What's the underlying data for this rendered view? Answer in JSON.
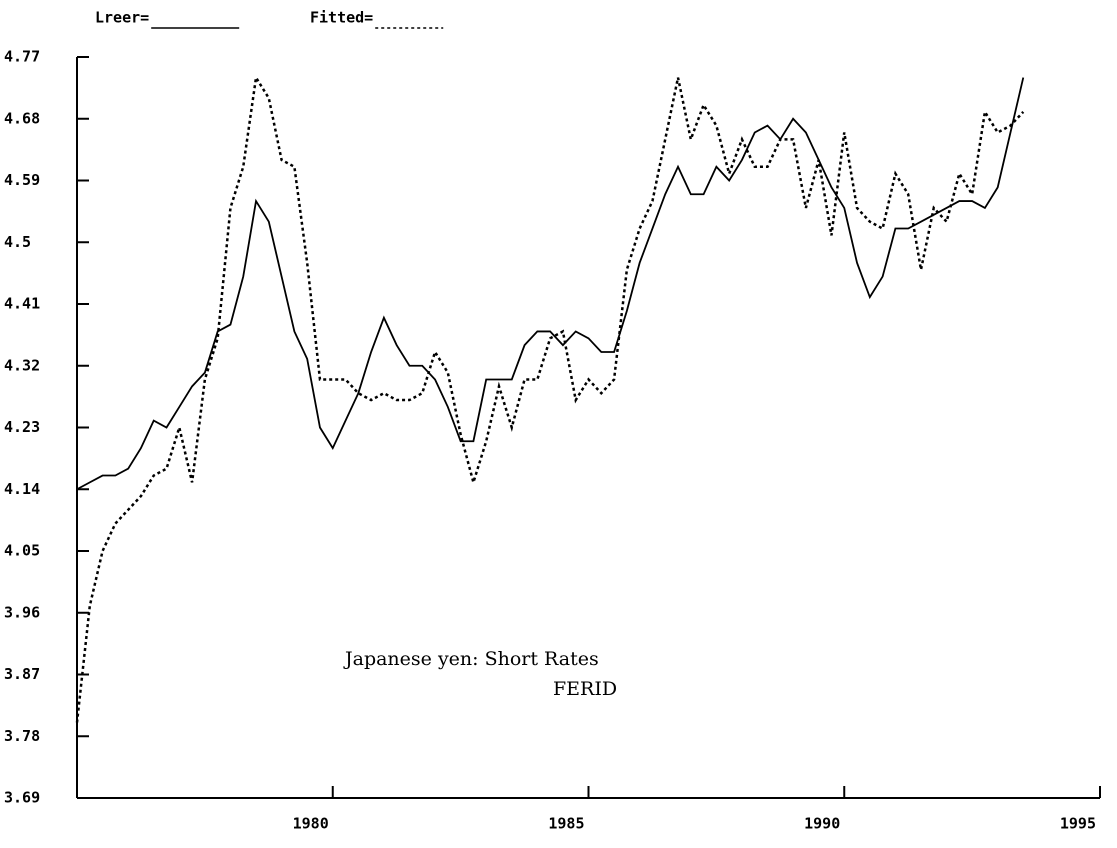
{
  "chart_data": {
    "type": "line",
    "x": [
      1975,
      1975.25,
      1975.5,
      1975.75,
      1976,
      1976.25,
      1976.5,
      1976.75,
      1977,
      1977.25,
      1977.5,
      1977.75,
      1978,
      1978.25,
      1978.5,
      1978.75,
      1979,
      1979.25,
      1979.5,
      1979.75,
      1980,
      1980.25,
      1980.5,
      1980.75,
      1981,
      1981.25,
      1981.5,
      1981.75,
      1982,
      1982.25,
      1982.5,
      1982.75,
      1983,
      1983.25,
      1983.5,
      1983.75,
      1984,
      1984.25,
      1984.5,
      1984.75,
      1985,
      1985.25,
      1985.5,
      1985.75,
      1986,
      1986.25,
      1986.5,
      1986.75,
      1987,
      1987.25,
      1987.5,
      1987.75,
      1988,
      1988.25,
      1988.5,
      1988.75,
      1989,
      1989.25,
      1989.5,
      1989.75,
      1990,
      1990.25,
      1990.5,
      1990.75,
      1991,
      1991.25,
      1991.5,
      1991.75,
      1992,
      1992.25,
      1992.5,
      1992.75,
      1993,
      1993.25,
      1993.5
    ],
    "series": [
      {
        "name": "Lreer=",
        "color": "#000000",
        "dash": false,
        "values": [
          4.14,
          4.15,
          4.16,
          4.16,
          4.17,
          4.2,
          4.24,
          4.23,
          4.26,
          4.29,
          4.31,
          4.37,
          4.38,
          4.45,
          4.56,
          4.53,
          4.45,
          4.37,
          4.33,
          4.23,
          4.2,
          4.24,
          4.28,
          4.34,
          4.39,
          4.35,
          4.32,
          4.32,
          4.3,
          4.26,
          4.21,
          4.21,
          4.3,
          4.3,
          4.3,
          4.35,
          4.37,
          4.37,
          4.35,
          4.37,
          4.36,
          4.34,
          4.34,
          4.4,
          4.47,
          4.52,
          4.57,
          4.61,
          4.57,
          4.57,
          4.61,
          4.59,
          4.62,
          4.66,
          4.67,
          4.65,
          4.68,
          4.66,
          4.62,
          4.58,
          4.55,
          4.47,
          4.42,
          4.45,
          4.52,
          4.52,
          4.53,
          4.54,
          4.55,
          4.56,
          4.56,
          4.55,
          4.58,
          4.66,
          4.74
        ]
      },
      {
        "name": "Fitted=",
        "color": "#000000",
        "dash": true,
        "values": [
          3.8,
          3.97,
          4.05,
          4.09,
          4.11,
          4.13,
          4.16,
          4.17,
          4.23,
          4.15,
          4.3,
          4.36,
          4.55,
          4.61,
          4.74,
          4.71,
          4.62,
          4.61,
          4.47,
          4.3,
          4.3,
          4.3,
          4.28,
          4.27,
          4.28,
          4.27,
          4.27,
          4.28,
          4.34,
          4.31,
          4.22,
          4.15,
          4.21,
          4.29,
          4.23,
          4.3,
          4.3,
          4.36,
          4.37,
          4.27,
          4.3,
          4.28,
          4.3,
          4.46,
          4.52,
          4.56,
          4.65,
          4.74,
          4.65,
          4.7,
          4.67,
          4.6,
          4.65,
          4.61,
          4.61,
          4.65,
          4.65,
          4.55,
          4.62,
          4.51,
          4.66,
          4.55,
          4.53,
          4.52,
          4.6,
          4.57,
          4.46,
          4.55,
          4.53,
          4.6,
          4.57,
          4.69,
          4.66,
          4.67,
          4.69
        ]
      }
    ],
    "annotations": [
      "Japanese yen: Short Rates",
      "FERID"
    ],
    "xlim": [
      1975,
      1995
    ],
    "xticks": [
      1980,
      1985,
      1990,
      1995
    ],
    "ylim": [
      3.69,
      4.77
    ],
    "yticks": [
      4.77,
      4.68,
      4.59,
      4.5,
      4.41,
      4.32,
      4.23,
      4.14,
      4.05,
      3.96,
      3.87,
      3.78,
      3.69
    ],
    "grid": false
  }
}
